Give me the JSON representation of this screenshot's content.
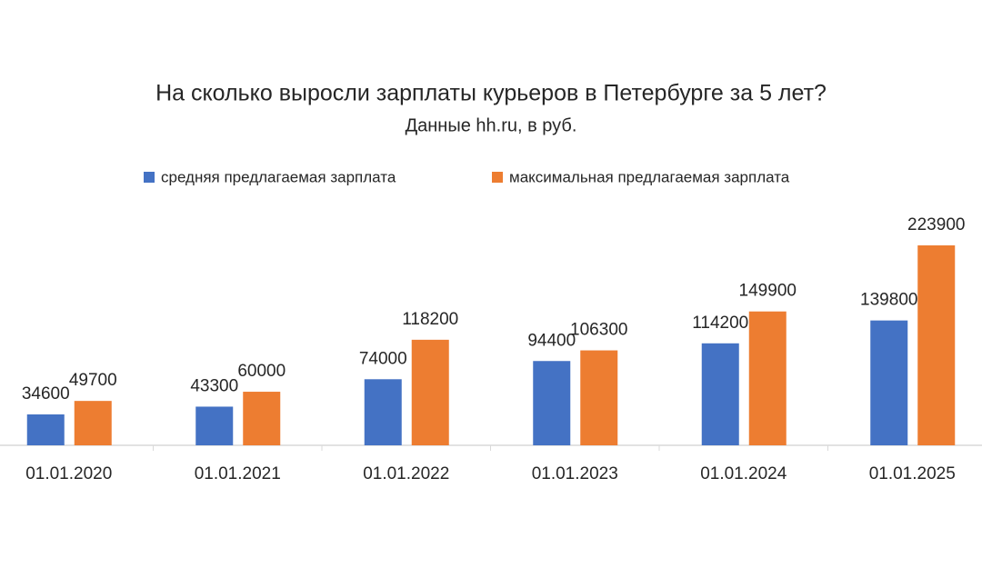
{
  "chart_data": {
    "type": "bar",
    "title": "На сколько выросли зарплаты курьеров в Петербурге за 5 лет?",
    "subtitle": "Данные hh.ru, в руб.",
    "categories": [
      "01.01.2020",
      "01.01.2021",
      "01.01.2022",
      "01.01.2023",
      "01.01.2024",
      "01.01.2025"
    ],
    "series": [
      {
        "name": "средняя предлагаемая зарплата",
        "color": "#4472c4",
        "values": [
          34600,
          43300,
          74000,
          94400,
          114200,
          139800
        ]
      },
      {
        "name": "максимальная предлагаемая зарплата",
        "color": "#ed7d31",
        "values": [
          49700,
          60000,
          118200,
          106300,
          149900,
          223900
        ]
      }
    ]
  }
}
